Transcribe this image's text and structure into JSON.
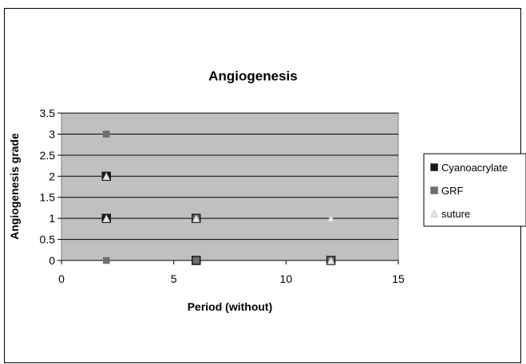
{
  "chart_data": {
    "type": "scatter",
    "title": "Angiogenesis",
    "xlabel": "Period (without)",
    "ylabel": "Angiogenesis grade",
    "xlim": [
      0,
      15
    ],
    "ylim": [
      0,
      3.5
    ],
    "xticks": [
      "0",
      "5",
      "10",
      "15"
    ],
    "yticks": [
      "0",
      "0.5",
      "1",
      "1.5",
      "2",
      "2.5",
      "3",
      "3.5"
    ],
    "grid": true,
    "legend": "right",
    "plot_background": "#c0c0c0",
    "series": [
      {
        "name": "Cyanoacrylate",
        "marker": "square",
        "color": "#1a1a1a",
        "points": [
          [
            2,
            2
          ],
          [
            2,
            1
          ],
          [
            6,
            1
          ],
          [
            6,
            0
          ],
          [
            12,
            0
          ]
        ]
      },
      {
        "name": "GRF",
        "marker": "square",
        "color": "#6e6e6e",
        "points": [
          [
            2,
            3
          ],
          [
            2,
            0
          ],
          [
            6,
            1
          ],
          [
            6,
            0
          ],
          [
            12,
            0
          ]
        ]
      },
      {
        "name": "suture",
        "marker": "triangle",
        "color": "#e6e6e6",
        "points": [
          [
            2,
            2
          ],
          [
            2,
            1
          ],
          [
            6,
            1
          ],
          [
            12,
            1
          ],
          [
            12,
            0
          ]
        ]
      }
    ]
  }
}
